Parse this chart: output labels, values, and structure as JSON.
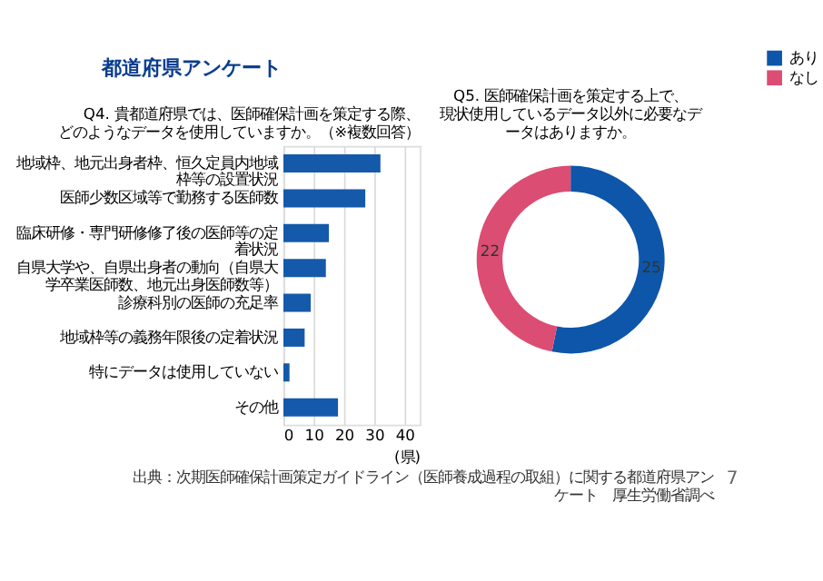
{
  "chart_data": [
    {
      "type": "bar",
      "orientation": "horizontal",
      "title": "Q4. 貴都道府県では、医師確保計画を策定する際、どのようなデータを使用していますか。（※複数回答）",
      "categories": [
        "地域枠、地元出身者枠、恒久定員内地域枠等の設置状況",
        "医師少数区域等で勤務する医師数",
        "臨床研修・専門研修修了後の医師等の定着状況",
        "自県大学や、自県出身者の動向（自県大学卒業医師数、地元出身医師数等）",
        "診療科別の医師の充足率",
        "地域枠等の義務年限後の定着状況",
        "特にデータは使用していない",
        "その他"
      ],
      "values": [
        32,
        27,
        15,
        14,
        9,
        7,
        2,
        18
      ],
      "color": "#1559ab",
      "xlim": [
        0,
        45
      ],
      "xticks": [
        0,
        10,
        20,
        30,
        40
      ],
      "xlabel": "(県)",
      "grid": "x",
      "annotations": [
        "都道府県アンケート",
        "出典：次期医師確保計画策定ガイドライン（医師養成過程の取組）に関する都道府県アンケート　厚生労働省調べ",
        "7"
      ]
    },
    {
      "type": "donut",
      "title": "Q5. 医師確保計画を策定する上で、現状使用しているデータ以外に必要なデータはありますか。",
      "categories": [
        "あり",
        "なし"
      ],
      "values": [
        25,
        22
      ],
      "colors": [
        "#0d56aa",
        "#db4d72"
      ],
      "data_labels": true,
      "legend": "right"
    }
  ]
}
